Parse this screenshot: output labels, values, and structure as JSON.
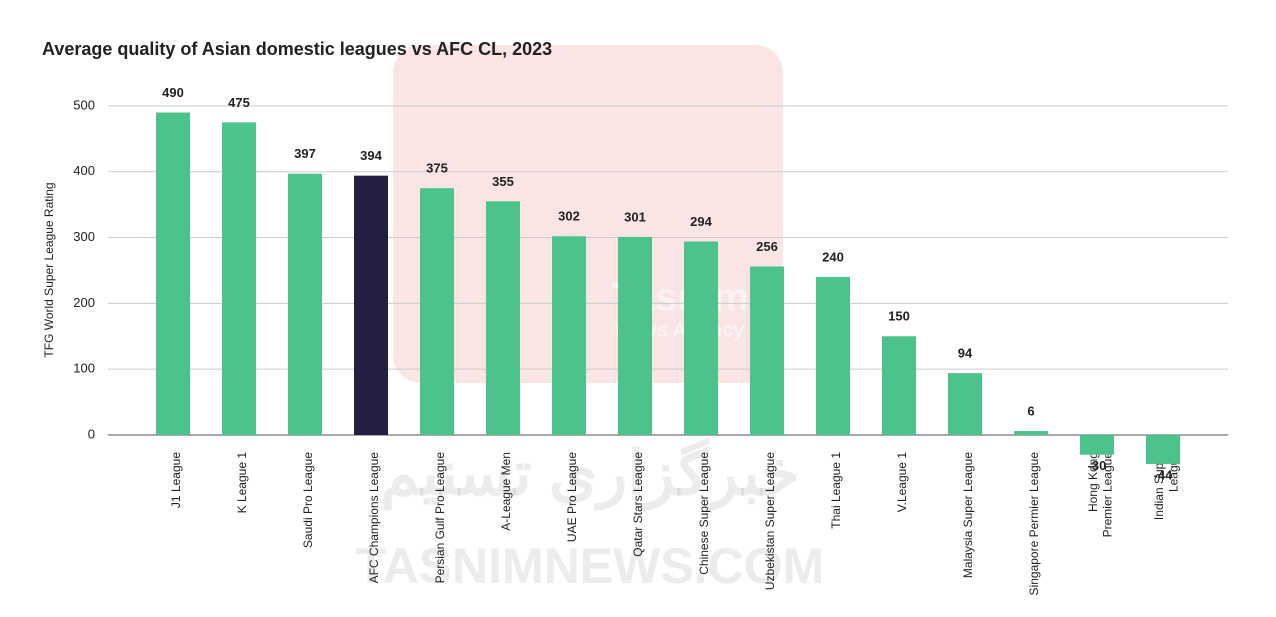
{
  "chart_data": {
    "type": "bar",
    "title": "Average quality of Asian domestic leagues vs AFC CL, 2023",
    "y_label": "TFG World Super League Rating",
    "categories": [
      "J1 League",
      "K League 1",
      "Saudi Pro League",
      "AFC Champions League",
      "Persian Gulf Pro League",
      "A-League Men",
      "UAE Pro League",
      "Qatar Stars League",
      "Chinese Super League",
      "Uzbekistan Super League",
      "Thai League 1",
      "V.League 1",
      "Malaysia Super League",
      "Singapore Permier League",
      "Hong Kong\nPremier League",
      "Indian Super\nLeague"
    ],
    "values": [
      490,
      475,
      397,
      394,
      375,
      355,
      302,
      301,
      294,
      256,
      240,
      150,
      94,
      6,
      -30,
      -44
    ],
    "colors": [
      "#4cc38a",
      "#4cc38a",
      "#4cc38a",
      "#231f45",
      "#4cc38a",
      "#4cc38a",
      "#4cc38a",
      "#4cc38a",
      "#4cc38a",
      "#4cc38a",
      "#4cc38a",
      "#4cc38a",
      "#4cc38a",
      "#4cc38a",
      "#4cc38a",
      "#4cc38a"
    ],
    "ylim": [
      -100,
      550
    ],
    "yticks": [
      0,
      100,
      200,
      300,
      400,
      500
    ],
    "grid": true,
    "watermark": [
      "Tasnim",
      "News Agency",
      "خبرگزاری تسنیم",
      "TASNIMNEWS.COM"
    ]
  }
}
